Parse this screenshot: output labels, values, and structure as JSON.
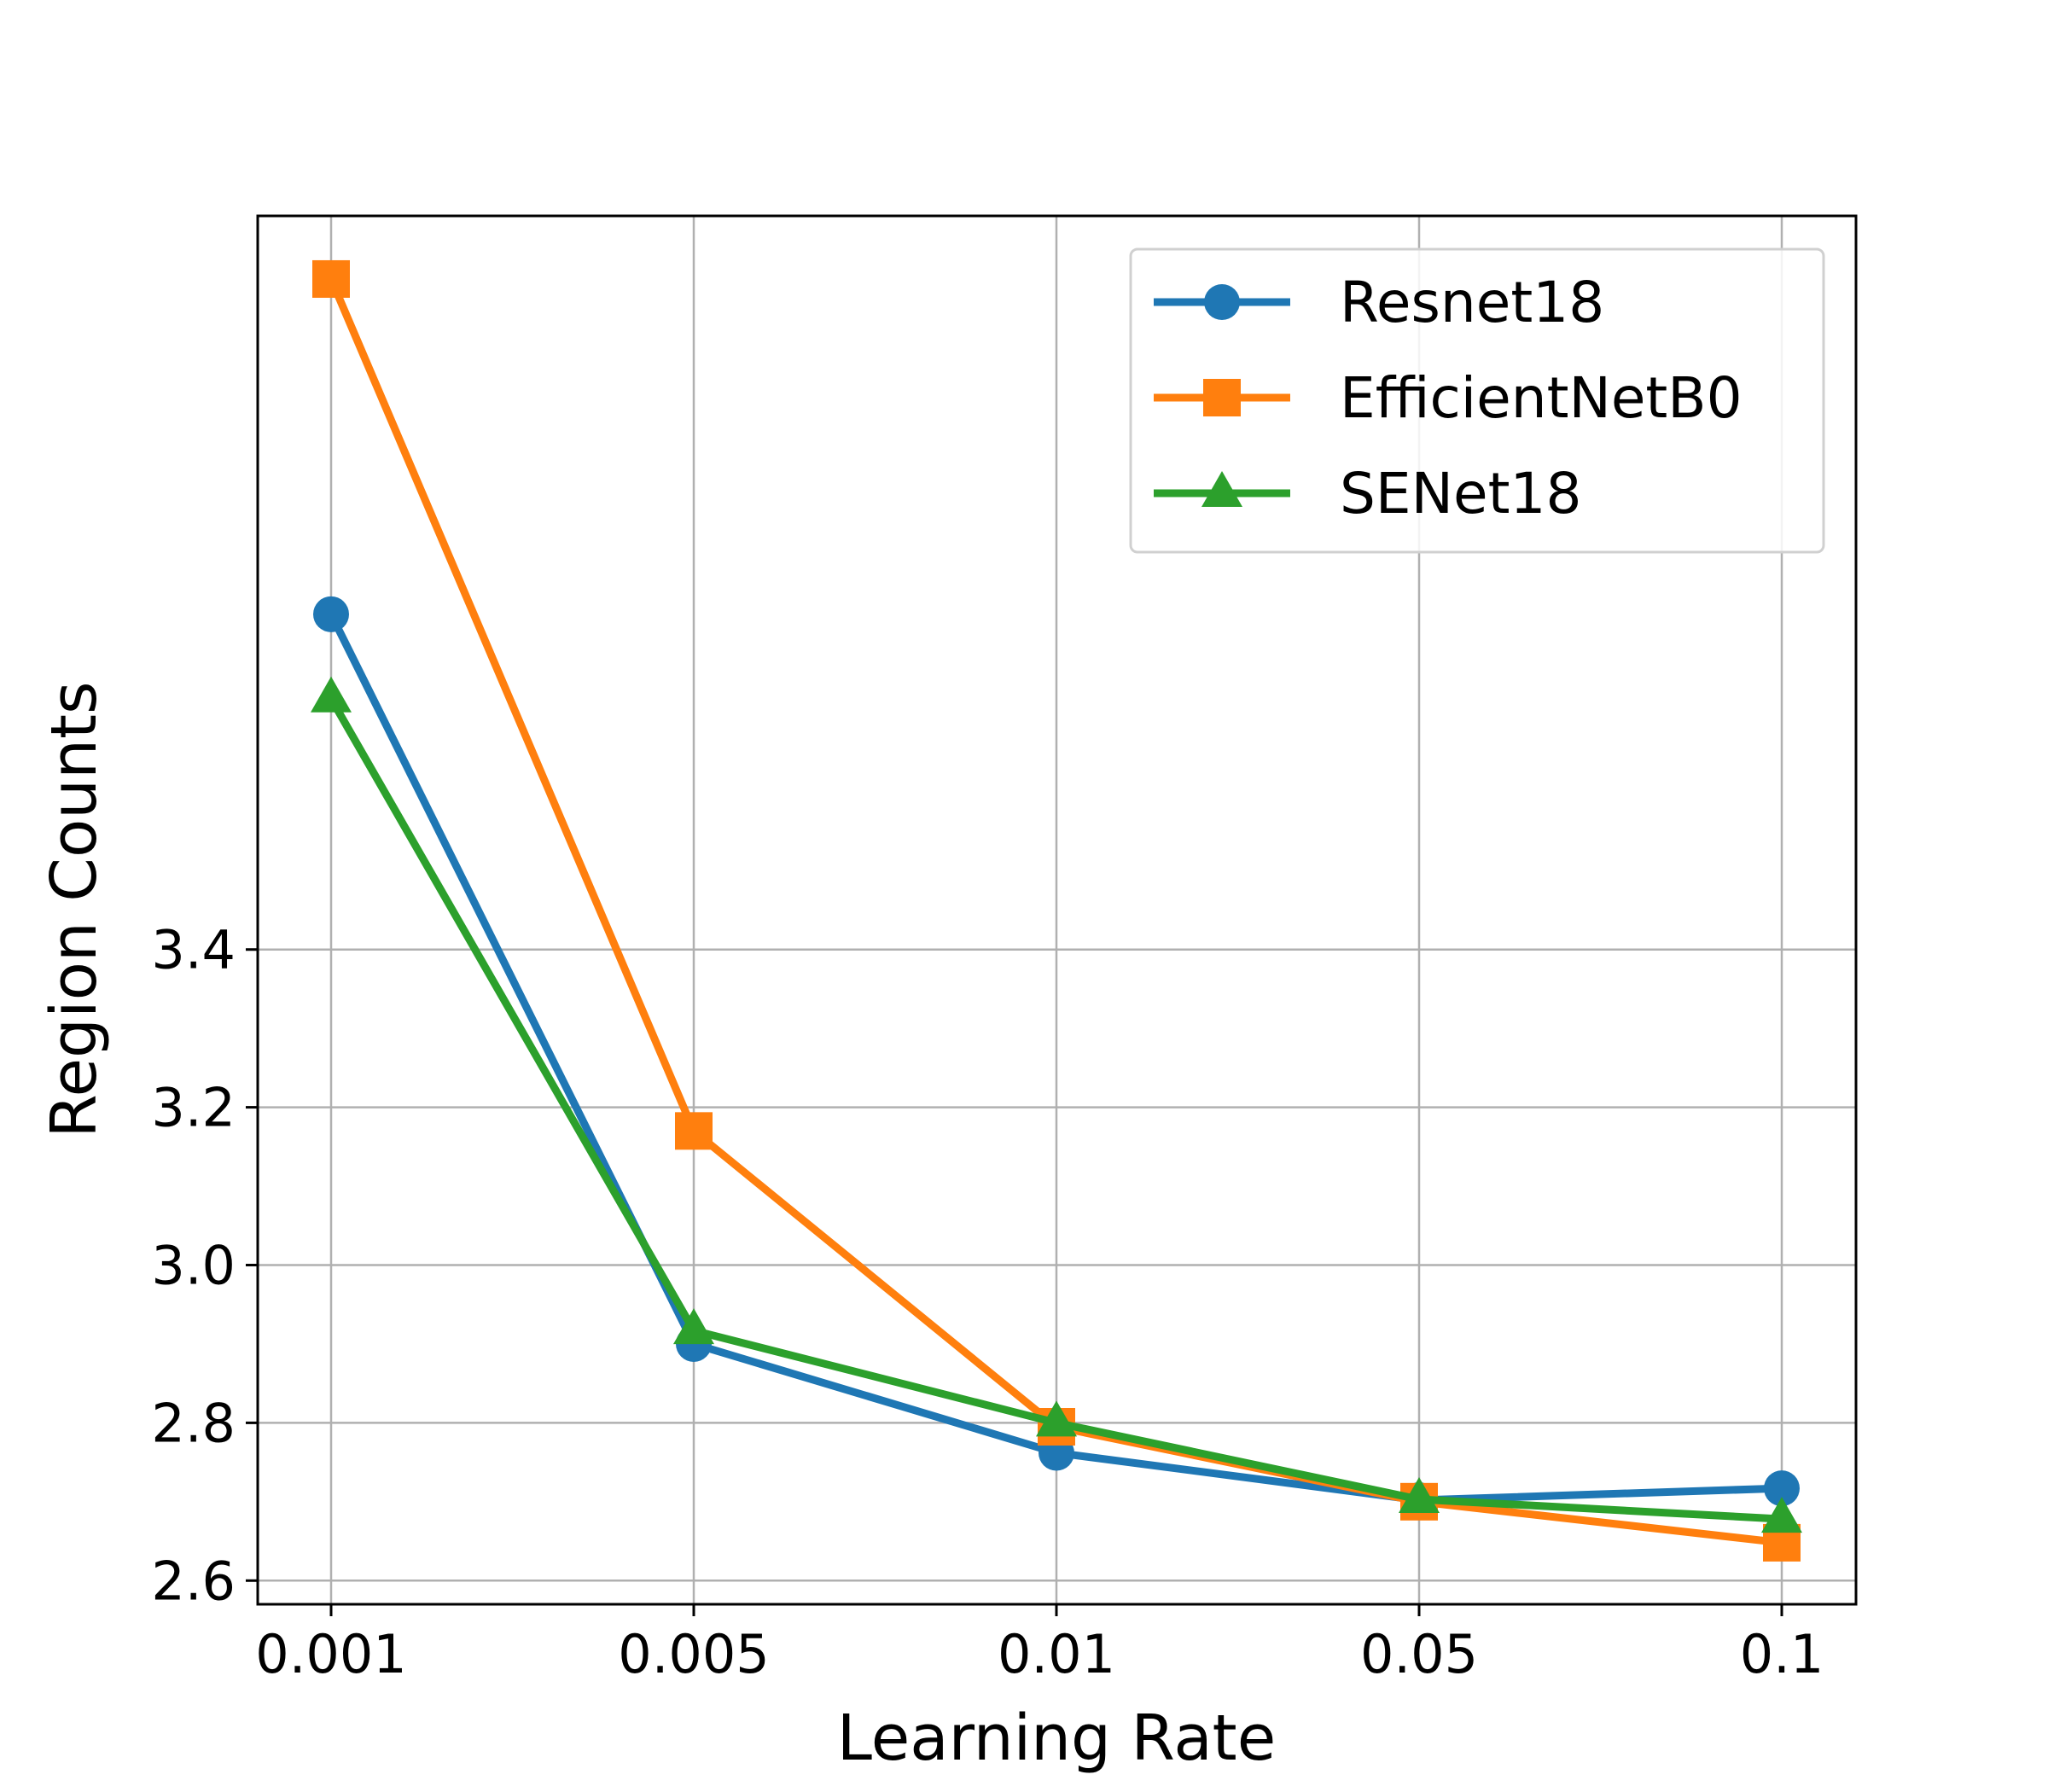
{
  "chart_data": {
    "type": "line",
    "categories": [
      "0.001",
      "0.005",
      "0.01",
      "0.05",
      "0.1"
    ],
    "xlabel": "Learning Rate",
    "ylabel": "Region Counts",
    "yticks": [
      2.6,
      2.8,
      3.0,
      3.2,
      3.4
    ],
    "ytick_labels": [
      "2.6",
      "2.8",
      "3.0",
      "3.2",
      "3.4"
    ],
    "ylim": [
      2.57,
      4.33
    ],
    "grid": true,
    "legend_position": "top-right",
    "series": [
      {
        "name": "Resnet18",
        "color": "#1f77b4",
        "marker": "circle",
        "values": [
          3.825,
          2.9,
          2.762,
          2.702,
          2.717
        ]
      },
      {
        "name": "EfficientNetB0",
        "color": "#ff7f0e",
        "marker": "square",
        "values": [
          4.25,
          3.17,
          2.795,
          2.7,
          2.648
        ]
      },
      {
        "name": "SENet18",
        "color": "#2ca02c",
        "marker": "triangle",
        "values": [
          3.718,
          2.917,
          2.8,
          2.703,
          2.678
        ]
      }
    ]
  }
}
